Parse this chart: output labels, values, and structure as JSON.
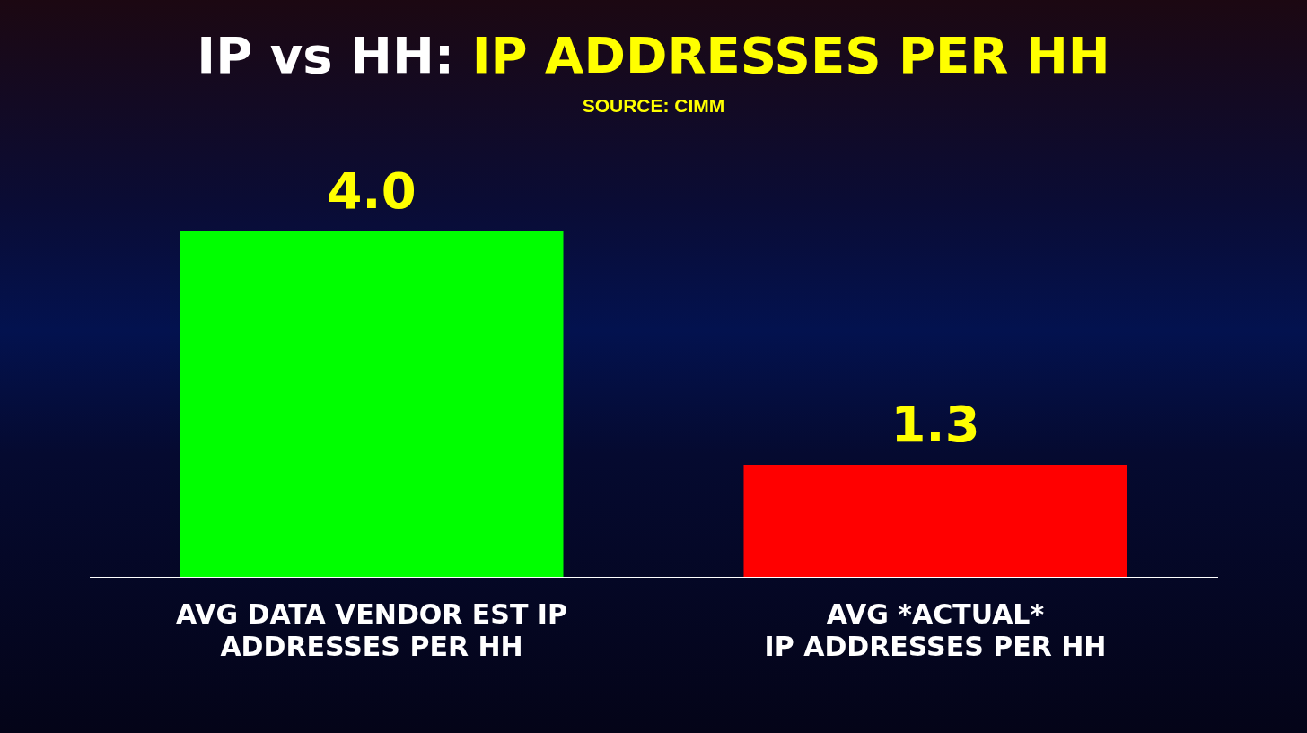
{
  "chart_data": {
    "type": "bar",
    "title": "IP vs HH: IP ADDRESSES PER HH",
    "annotations": [
      "SOURCE: CIMM"
    ],
    "categories": [
      "AVG DATA VENDOR EST IP\nADDRESSES PER HH",
      "AVG *ACTUAL*\nIP ADDRESSES PER HH"
    ],
    "values": [
      4.0,
      1.3
    ],
    "value_labels": [
      "4.0",
      "1.3"
    ],
    "colors": [
      "#00ff00",
      "#ff0000"
    ]
  }
}
